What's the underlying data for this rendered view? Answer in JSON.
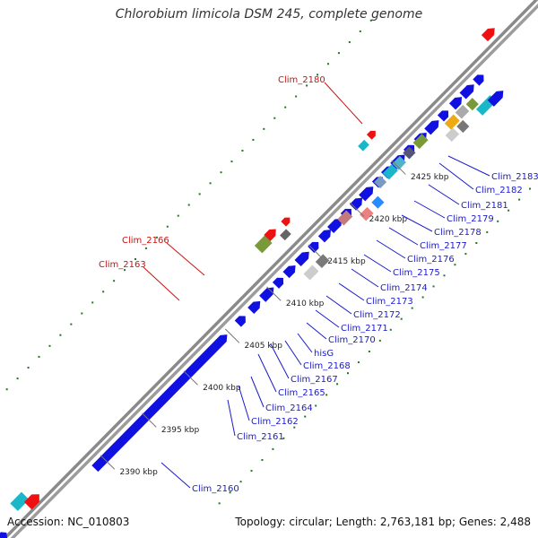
{
  "title": "Chlorobium limicola DSM 245, complete genome",
  "footer": {
    "accession": "Accession: NC_010803",
    "summary": "Topology: circular; Length: 2,763,181 bp; Genes: 2,488"
  },
  "ticks": [
    {
      "label": "2390 kbp",
      "pos": 2390
    },
    {
      "label": "2395 kbp",
      "pos": 2395
    },
    {
      "label": "2400 kbp",
      "pos": 2400
    },
    {
      "label": "2405 kbp",
      "pos": 2405
    },
    {
      "label": "2410 kbp",
      "pos": 2410
    },
    {
      "label": "2415 kbp",
      "pos": 2415
    },
    {
      "label": "2420 kbp",
      "pos": 2420
    },
    {
      "label": "2425 kbp",
      "pos": 2425
    }
  ],
  "red_labels": [
    "Clim_2180",
    "Clim_2166",
    "Clim_2163"
  ],
  "blue_labels": [
    "Clim_2160",
    "Clim_2161",
    "Clim_2162",
    "Clim_2164",
    "Clim_2165",
    "Clim_2167",
    "Clim_2168",
    "hisG",
    "Clim_2170",
    "Clim_2171",
    "Clim_2172",
    "Clim_2173",
    "Clim_2174",
    "Clim_2175",
    "Clim_2176",
    "Clim_2177",
    "Clim_2178",
    "Clim_2179",
    "Clim_2181",
    "Clim_2182",
    "Clim_2183"
  ],
  "colors": {
    "cds_forward": "#1010e0",
    "rna": "#ee1111",
    "label_blue": "#1a1acc",
    "label_red": "#cc1111",
    "backbone": "#888888",
    "gc_dots": "#227722"
  }
}
